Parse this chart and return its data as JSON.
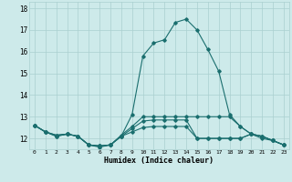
{
  "title": "",
  "xlabel": "Humidex (Indice chaleur)",
  "ylabel": "",
  "bg_color": "#cdeaea",
  "grid_color": "#aacfcf",
  "line_color": "#1a6e6e",
  "xlim": [
    -0.5,
    23.5
  ],
  "ylim": [
    11.5,
    18.3
  ],
  "yticks": [
    12,
    13,
    14,
    15,
    16,
    17,
    18
  ],
  "xticks": [
    0,
    1,
    2,
    3,
    4,
    5,
    6,
    7,
    8,
    9,
    10,
    11,
    12,
    13,
    14,
    15,
    16,
    17,
    18,
    19,
    20,
    21,
    22,
    23
  ],
  "lines": [
    {
      "x": [
        0,
        1,
        2,
        3,
        4,
        5,
        6,
        7,
        8,
        9,
        10,
        11,
        12,
        13,
        14,
        15,
        16,
        17,
        18,
        19,
        20,
        21,
        22,
        23
      ],
      "y": [
        12.6,
        12.3,
        12.1,
        12.2,
        12.1,
        11.7,
        11.6,
        11.7,
        12.1,
        13.1,
        15.8,
        16.4,
        16.55,
        17.35,
        17.5,
        17.0,
        16.1,
        15.1,
        13.1,
        12.55,
        12.2,
        12.0,
        11.9,
        11.7
      ]
    },
    {
      "x": [
        0,
        1,
        2,
        3,
        4,
        5,
        6,
        7,
        8,
        9,
        10,
        11,
        12,
        13,
        14,
        15,
        16,
        17,
        18,
        19,
        20,
        21,
        22,
        23
      ],
      "y": [
        12.6,
        12.3,
        12.1,
        12.2,
        12.1,
        11.7,
        11.65,
        11.7,
        12.15,
        12.55,
        13.0,
        13.0,
        13.0,
        13.0,
        13.0,
        13.0,
        13.0,
        13.0,
        13.0,
        12.55,
        12.2,
        12.1,
        11.9,
        11.7
      ]
    },
    {
      "x": [
        0,
        1,
        2,
        3,
        4,
        5,
        6,
        7,
        8,
        9,
        10,
        11,
        12,
        13,
        14,
        15,
        16,
        17,
        18,
        19,
        20,
        21,
        22,
        23
      ],
      "y": [
        12.6,
        12.3,
        12.15,
        12.2,
        12.1,
        11.7,
        11.65,
        11.7,
        12.1,
        12.45,
        12.8,
        12.85,
        12.85,
        12.85,
        12.85,
        12.0,
        12.0,
        12.0,
        12.0,
        12.0,
        12.2,
        12.1,
        11.9,
        11.7
      ]
    },
    {
      "x": [
        0,
        1,
        2,
        3,
        4,
        5,
        6,
        7,
        8,
        9,
        10,
        11,
        12,
        13,
        14,
        15,
        16,
        17,
        18,
        19,
        20,
        21,
        22,
        23
      ],
      "y": [
        12.6,
        12.3,
        12.15,
        12.2,
        12.1,
        11.7,
        11.65,
        11.7,
        12.1,
        12.3,
        12.5,
        12.55,
        12.55,
        12.55,
        12.55,
        12.0,
        12.0,
        12.0,
        12.0,
        12.0,
        12.2,
        12.1,
        11.9,
        11.7
      ]
    }
  ]
}
